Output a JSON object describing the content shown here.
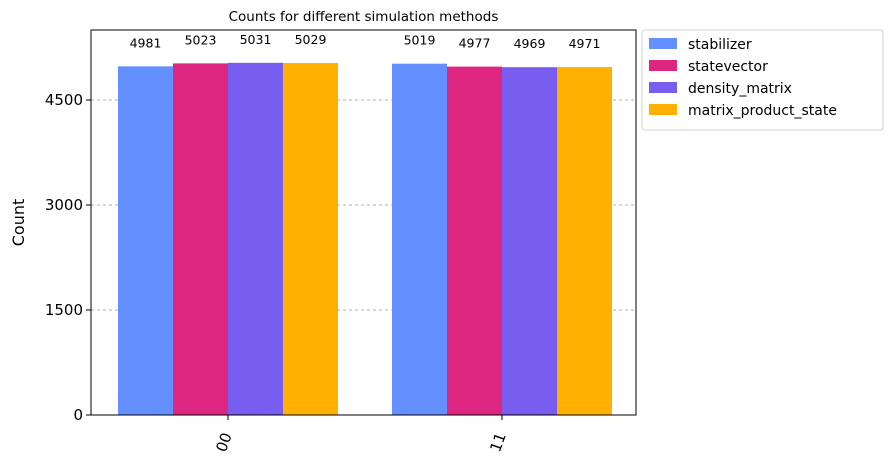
{
  "chart_data": {
    "type": "bar",
    "title": "Counts for different simulation methods",
    "xlabel": "",
    "ylabel": "Count",
    "categories": [
      "00",
      "11"
    ],
    "ylim": [
      0,
      5500
    ],
    "yticks": [
      0,
      1500,
      3000,
      4500
    ],
    "ytick_labels": [
      "0",
      "1500",
      "3000",
      "4500"
    ],
    "grid": "horizontal-dashed",
    "legend_position": "outside-top-right",
    "series": [
      {
        "name": "stabilizer",
        "color": "#648fff",
        "values": [
          4981,
          5019
        ],
        "labels": [
          "4981",
          "5019"
        ]
      },
      {
        "name": "statevector",
        "color": "#dc267f",
        "values": [
          5023,
          4977
        ],
        "labels": [
          "5023",
          "4977"
        ]
      },
      {
        "name": "density_matrix",
        "color": "#785ef0",
        "values": [
          5031,
          4969
        ],
        "labels": [
          "5031",
          "4969"
        ]
      },
      {
        "name": "matrix_product_state",
        "color": "#ffb000",
        "values": [
          5029,
          4971
        ],
        "labels": [
          "5029",
          "4971"
        ]
      }
    ]
  }
}
